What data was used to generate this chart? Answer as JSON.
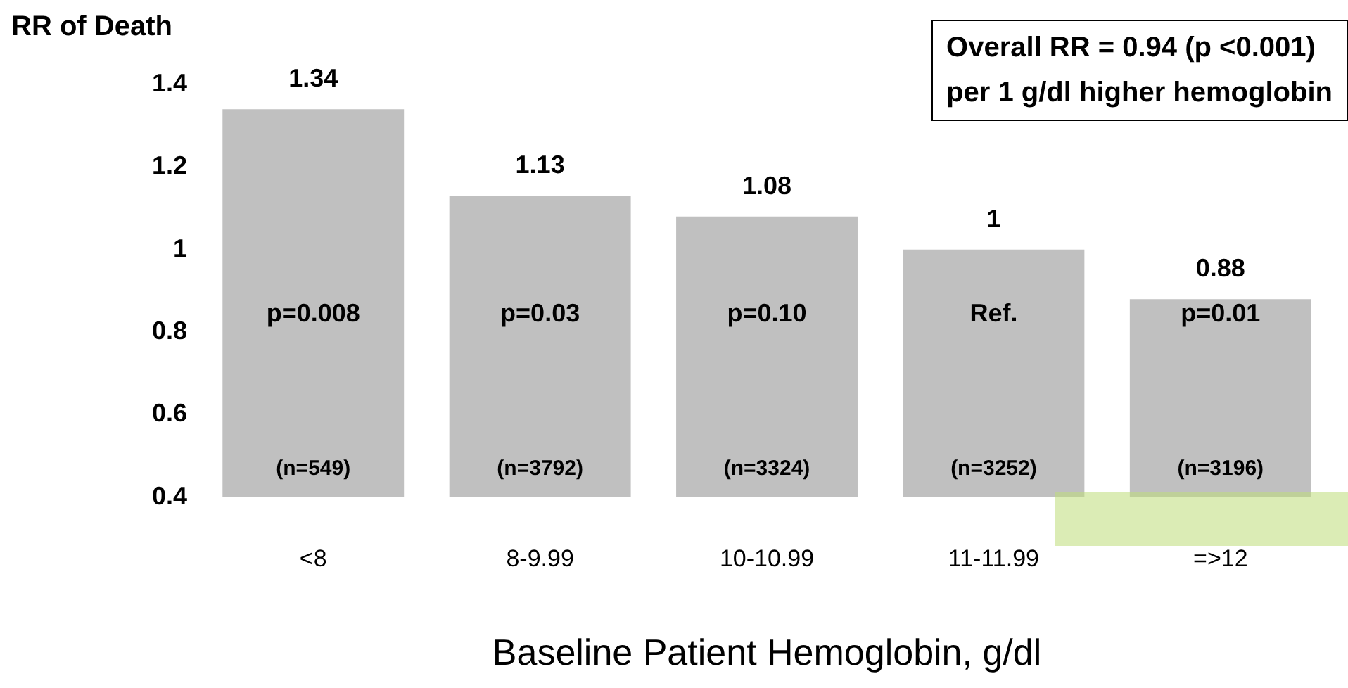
{
  "chart_data": {
    "type": "bar",
    "ylabel": "RR of Death",
    "xlabel": "Baseline Patient Hemoglobin, g/dl",
    "categories": [
      "<8",
      "8-9.99",
      "10-10.99",
      "11-11.99",
      "=>12"
    ],
    "values": [
      1.34,
      1.13,
      1.08,
      1,
      0.88
    ],
    "color": "#c0c0c0",
    "ylim": [
      0.4,
      1.4
    ],
    "yticks": [
      0.4,
      0.6,
      0.8,
      1,
      1.2,
      1.4
    ],
    "grid": false,
    "legend": false,
    "data_labels": true,
    "annotations": [
      "Overall RR = 0.94 (p <0.001)\nper 1 g/dl higher hemoglobin",
      "p=0.008",
      "p=0.03",
      "p=0.10",
      "Ref.",
      "p=0.01",
      "(n=549)",
      "(n=3792)",
      "(n=3324)",
      "(n=3252)",
      "(n=3196)"
    ]
  }
}
